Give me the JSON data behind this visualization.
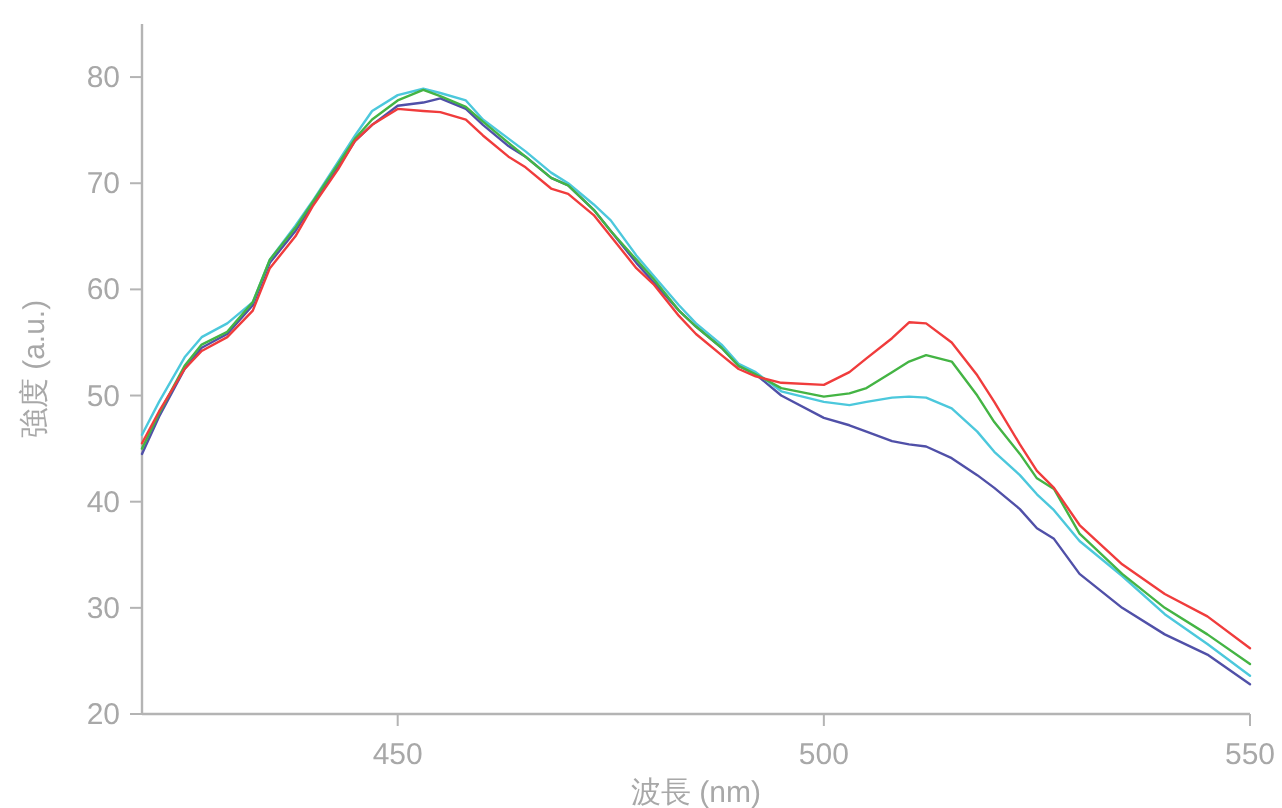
{
  "chart_data": {
    "type": "line",
    "xlabel": "波長 (nm)",
    "ylabel": "強度 (a.u.)",
    "xlim": [
      420,
      550
    ],
    "ylim": [
      20,
      85
    ],
    "xticks": [
      450,
      500,
      550
    ],
    "yticks": [
      20,
      30,
      40,
      50,
      60,
      70,
      80
    ],
    "x": [
      420,
      422,
      425,
      427,
      430,
      433,
      435,
      438,
      440,
      443,
      445,
      447,
      450,
      453,
      455,
      458,
      460,
      463,
      465,
      468,
      470,
      473,
      475,
      478,
      480,
      483,
      485,
      488,
      490,
      492,
      495,
      500,
      503,
      505,
      508,
      510,
      512,
      515,
      518,
      520,
      523,
      525,
      527,
      530,
      535,
      540,
      545,
      550
    ],
    "series": [
      {
        "color": "#5050a8",
        "values": [
          44.5,
          48,
          52.5,
          54.5,
          55.8,
          58.5,
          62.5,
          65.5,
          68,
          71.5,
          74,
          75.5,
          77.3,
          77.6,
          78,
          77,
          75.5,
          73.5,
          72.5,
          70.5,
          69.8,
          67.5,
          65.5,
          62.5,
          60.7,
          58,
          56.5,
          54.5,
          52.8,
          52.0,
          50.0,
          47.9,
          47.2,
          46.6,
          45.7,
          45.4,
          45.2,
          44.1,
          42.5,
          41.3,
          39.3,
          37.5,
          36.5,
          33.2,
          30.0,
          27.5,
          25.6,
          22.8
        ]
      },
      {
        "color": "#4cc8dc",
        "values": [
          46.3,
          49.4,
          53.6,
          55.5,
          56.8,
          58.8,
          62.8,
          66,
          68.3,
          72,
          74.5,
          76.8,
          78.3,
          78.9,
          78.5,
          77.8,
          76,
          74.2,
          73,
          71,
          70,
          68,
          66.5,
          63.2,
          61.3,
          58.5,
          56.8,
          54.8,
          53,
          52.2,
          50.4,
          49.4,
          49.1,
          49.4,
          49.8,
          49.9,
          49.8,
          48.8,
          46.6,
          44.7,
          42.5,
          40.7,
          39.2,
          36.3,
          33.0,
          29.4,
          26.6,
          23.6
        ]
      },
      {
        "color": "#44b444",
        "values": [
          45,
          48.3,
          52.8,
          54.8,
          56,
          58.8,
          62.8,
          65.8,
          68.2,
          71.8,
          74.2,
          76,
          77.8,
          78.8,
          78.2,
          77.2,
          75.8,
          73.8,
          72.5,
          70.5,
          69.8,
          67.5,
          65.5,
          62.8,
          61,
          58,
          56.5,
          54.5,
          52.8,
          52.0,
          50.7,
          49.9,
          50.2,
          50.7,
          52.2,
          53.2,
          53.8,
          53.2,
          50.0,
          47.5,
          44.5,
          42.2,
          41.2,
          37,
          33.2,
          30.0,
          27.5,
          24.7
        ]
      },
      {
        "color": "#f03c3c",
        "values": [
          45.5,
          48.5,
          52.5,
          54.2,
          55.5,
          58,
          62,
          65,
          67.8,
          71.3,
          74,
          75.5,
          77,
          76.8,
          76.7,
          76,
          74.5,
          72.5,
          71.5,
          69.5,
          69,
          67,
          65,
          62,
          60.5,
          57.5,
          55.8,
          53.8,
          52.5,
          51.8,
          51.2,
          51.0,
          52.2,
          53.5,
          55.4,
          56.9,
          56.8,
          55,
          51.9,
          49.4,
          45.4,
          42.9,
          41.3,
          37.8,
          34.1,
          31.3,
          29.2,
          26.2
        ]
      }
    ]
  }
}
